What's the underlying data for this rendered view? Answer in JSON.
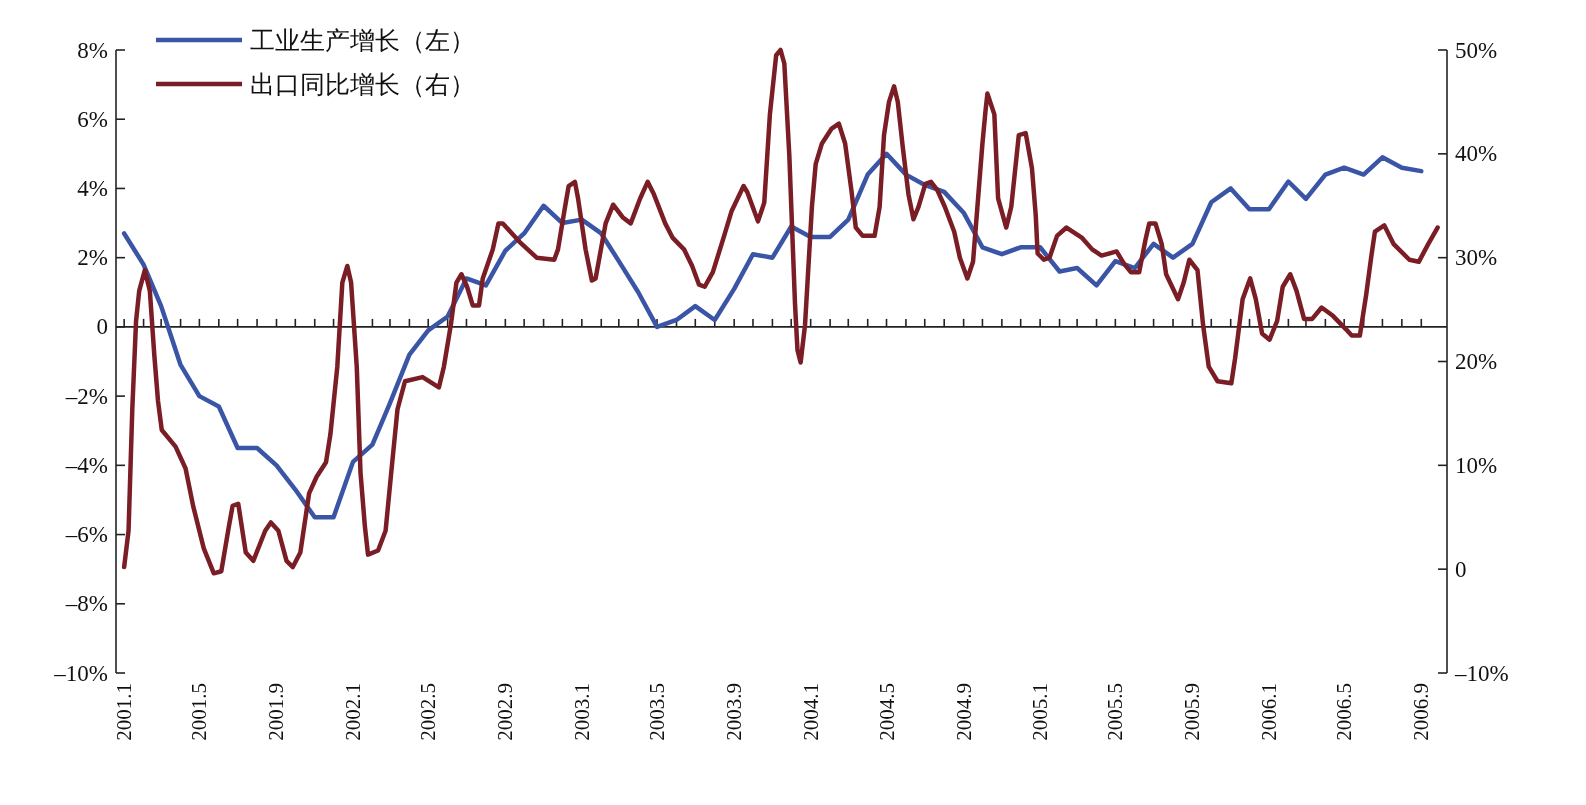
{
  "chart_data": {
    "type": "line",
    "legend": "top left",
    "xlim": [
      "2000-12-19",
      "2006-10-12"
    ],
    "xticks": [
      {
        "value": "2001-01",
        "label": "2001.1"
      },
      {
        "value": "2001-02",
        "label": null
      },
      {
        "value": "2001-03",
        "label": null
      },
      {
        "value": "2001-04",
        "label": null
      },
      {
        "value": "2001-05",
        "label": "2001.5"
      },
      {
        "value": "2001-06",
        "label": null
      },
      {
        "value": "2001-07",
        "label": null
      },
      {
        "value": "2001-08",
        "label": null
      },
      {
        "value": "2001-09",
        "label": "2001.9"
      },
      {
        "value": "2001-10",
        "label": null
      },
      {
        "value": "2001-11",
        "label": null
      },
      {
        "value": "2001-12",
        "label": null
      },
      {
        "value": "2002-01",
        "label": "2002.1"
      },
      {
        "value": "2002-02",
        "label": null
      },
      {
        "value": "2002-03",
        "label": null
      },
      {
        "value": "2002-04",
        "label": null
      },
      {
        "value": "2002-05",
        "label": "2002.5"
      },
      {
        "value": "2002-06",
        "label": null
      },
      {
        "value": "2002-07",
        "label": null
      },
      {
        "value": "2002-08",
        "label": null
      },
      {
        "value": "2002-09",
        "label": "2002.9"
      },
      {
        "value": "2002-10",
        "label": null
      },
      {
        "value": "2002-11",
        "label": null
      },
      {
        "value": "2002-12",
        "label": null
      },
      {
        "value": "2003-01",
        "label": "2003.1"
      },
      {
        "value": "2003-02",
        "label": null
      },
      {
        "value": "2003-03",
        "label": null
      },
      {
        "value": "2003-04",
        "label": null
      },
      {
        "value": "2003-05",
        "label": "2003.5"
      },
      {
        "value": "2003-06",
        "label": null
      },
      {
        "value": "2003-07",
        "label": null
      },
      {
        "value": "2003-08",
        "label": null
      },
      {
        "value": "2003-09",
        "label": "2003.9"
      },
      {
        "value": "2003-10",
        "label": null
      },
      {
        "value": "2003-11",
        "label": null
      },
      {
        "value": "2003-12",
        "label": null
      },
      {
        "value": "2004-01",
        "label": "2004.1"
      },
      {
        "value": "2004-02",
        "label": null
      },
      {
        "value": "2004-03",
        "label": null
      },
      {
        "value": "2004-04",
        "label": null
      },
      {
        "value": "2004-05",
        "label": "2004.5"
      },
      {
        "value": "2004-06",
        "label": null
      },
      {
        "value": "2004-07",
        "label": null
      },
      {
        "value": "2004-08",
        "label": null
      },
      {
        "value": "2004-09",
        "label": "2004.9"
      },
      {
        "value": "2004-10",
        "label": null
      },
      {
        "value": "2004-11",
        "label": null
      },
      {
        "value": "2004-12",
        "label": null
      },
      {
        "value": "2005-01",
        "label": "2005.1"
      },
      {
        "value": "2005-02",
        "label": null
      },
      {
        "value": "2005-03",
        "label": null
      },
      {
        "value": "2005-04",
        "label": null
      },
      {
        "value": "2005-05",
        "label": "2005.5"
      },
      {
        "value": "2005-06",
        "label": null
      },
      {
        "value": "2005-07",
        "label": null
      },
      {
        "value": "2005-08",
        "label": null
      },
      {
        "value": "2005-09",
        "label": "2005.9"
      },
      {
        "value": "2005-10",
        "label": null
      },
      {
        "value": "2005-11",
        "label": null
      },
      {
        "value": "2005-12",
        "label": null
      },
      {
        "value": "2006-01",
        "label": "2006.1"
      },
      {
        "value": "2006-02",
        "label": null
      },
      {
        "value": "2006-03",
        "label": null
      },
      {
        "value": "2006-04",
        "label": null
      },
      {
        "value": "2006-05",
        "label": "2006.5"
      },
      {
        "value": "2006-06",
        "label": null
      },
      {
        "value": "2006-07",
        "label": null
      },
      {
        "value": "2006-08",
        "label": null
      },
      {
        "value": "2006-09",
        "label": "2006.9"
      }
    ],
    "ylim": [
      -10,
      8
    ],
    "yticks": [
      {
        "value": -10,
        "label": "–10%"
      },
      {
        "value": -8,
        "label": "–8%"
      },
      {
        "value": -6,
        "label": "–6%"
      },
      {
        "value": -4,
        "label": "–4%"
      },
      {
        "value": -2,
        "label": "–2%"
      },
      0,
      {
        "value": 2,
        "label": "2%"
      },
      {
        "value": 4,
        "label": "4%"
      },
      {
        "value": 6,
        "label": "6%"
      },
      {
        "value": 8,
        "label": "8%"
      }
    ],
    "y2lim": [
      -10,
      50
    ],
    "y2ticks": [
      {
        "value": -10,
        "label": "–10%"
      },
      0,
      {
        "value": 10,
        "label": "10%"
      },
      {
        "value": 20,
        "label": "20%"
      },
      {
        "value": 30,
        "label": "30%"
      },
      {
        "value": 40,
        "label": "40%"
      },
      {
        "value": 50,
        "label": "50%"
      }
    ],
    "series": [
      {
        "name": "工业生产增长（左）",
        "color": "#3a55a5",
        "x": [
          "2001-01",
          "2001-02",
          "2001-03",
          "2001-04",
          "2001-05",
          "2001-06",
          "2001-07",
          "2001-08",
          "2001-09",
          "2001-10",
          "2001-11",
          "2001-12",
          "2002-01",
          "2002-02",
          "2002-03",
          "2002-04",
          "2002-05",
          "2002-06",
          "2002-07",
          "2002-08",
          "2002-09",
          "2002-10",
          "2002-11",
          "2002-12",
          "2003-01",
          "2003-02",
          "2003-03",
          "2003-04",
          "2003-05",
          "2003-06",
          "2003-07",
          "2003-08",
          "2003-09",
          "2003-10",
          "2003-11",
          "2003-12",
          "2004-01",
          "2004-02",
          "2004-03",
          "2004-04",
          "2004-05",
          "2004-06",
          "2004-07",
          "2004-08",
          "2004-09",
          "2004-10",
          "2004-11",
          "2004-12",
          "2005-01",
          "2005-02",
          "2005-03",
          "2005-04",
          "2005-05",
          "2005-06",
          "2005-07",
          "2005-08",
          "2005-09",
          "2005-10",
          "2005-11",
          "2005-12",
          "2006-01",
          "2006-02",
          "2006-03",
          "2006-04",
          "2006-05",
          "2006-06",
          "2006-07",
          "2006-08",
          "2006-09"
        ],
        "values": [
          2.7,
          1.8,
          0.6,
          -1.1,
          -2.0,
          -2.3,
          -3.5,
          -3.5,
          -4.0,
          -4.7,
          -5.5,
          -5.5,
          -3.9,
          -3.4,
          -2.2,
          -0.8,
          -0.1,
          0.3,
          1.4,
          1.2,
          2.2,
          2.7,
          3.5,
          3.0,
          3.1,
          2.7,
          1.9,
          1.0,
          0,
          0.2,
          0.6,
          0.2,
          1.1,
          2.1,
          2.0,
          2.9,
          2.6,
          2.6,
          3.1,
          4.4,
          5.0,
          4.4,
          4.1,
          3.9,
          3.3,
          2.3,
          2.1,
          2.3,
          2.3,
          1.6,
          1.7,
          1.2,
          1.9,
          1.7,
          2.4,
          2.0,
          2.4,
          3.6,
          4.0,
          3.4,
          3.4,
          4.2,
          3.7,
          4.4,
          4.6,
          4.4,
          4.9,
          4.6,
          4.5
        ]
      },
      {
        "name": "出口同比增长（右）",
        "color": "#7a1d25",
        "axis": "y2",
        "x": [
          "2001-01-01",
          "2001-01-08",
          "2001-01-14",
          "2001-01-20",
          "2001-01-25",
          "2001-02-03",
          "2001-02-11",
          "2001-02-18",
          "2001-02-24",
          "2001-03-02",
          "2001-03-24",
          "2001-04-09",
          "2001-04-21",
          "2001-05-08",
          "2001-05-24",
          "2001-06-05",
          "2001-06-17",
          "2001-06-23",
          "2001-07-02",
          "2001-07-14",
          "2001-07-26",
          "2001-08-14",
          "2001-08-23",
          "2001-09-04",
          "2001-09-17",
          "2001-09-27",
          "2001-10-09",
          "2001-10-23",
          "2001-11-04",
          "2001-11-19",
          "2001-11-26",
          "2001-12-07",
          "2001-12-15",
          "2001-12-23",
          "2001-12-29",
          "2002-01-07",
          "2002-01-13",
          "2002-01-20",
          "2002-01-25",
          "2002-02-10",
          "2002-02-22",
          "2002-03-03",
          "2002-03-13",
          "2002-03-25",
          "2002-04-22",
          "2002-05-18",
          "2002-05-26",
          "2002-06-06",
          "2002-06-15",
          "2002-06-23",
          "2002-07-02",
          "2002-07-11",
          "2002-07-21",
          "2002-07-27",
          "2002-08-12",
          "2002-08-21",
          "2002-08-28",
          "2002-09-24",
          "2002-10-21",
          "2002-11-18",
          "2002-11-24",
          "2002-12-05",
          "2002-12-11",
          "2002-12-21",
          "2002-12-26",
          "2003-01-07",
          "2003-01-17",
          "2003-01-23",
          "2003-02-08",
          "2003-02-20",
          "2003-03-07",
          "2003-03-20",
          "2003-04-04",
          "2003-04-16",
          "2003-04-26",
          "2003-05-14",
          "2003-05-26",
          "2003-06-13",
          "2003-06-26",
          "2003-07-07",
          "2003-07-16",
          "2003-07-29",
          "2003-08-16",
          "2003-08-28",
          "2003-09-16",
          "2003-09-22",
          "2003-10-09",
          "2003-10-19",
          "2003-10-28",
          "2003-11-07",
          "2003-11-14",
          "2003-11-20",
          "2003-11-28",
          "2003-12-07",
          "2003-12-11",
          "2003-12-16",
          "2003-12-23",
          "2004-01-03",
          "2004-01-09",
          "2004-01-19",
          "2004-02-03",
          "2004-02-15",
          "2004-02-25",
          "2004-03-06",
          "2004-03-13",
          "2004-03-24",
          "2004-04-12",
          "2004-04-20",
          "2004-04-27",
          "2004-05-05",
          "2004-05-13",
          "2004-05-19",
          "2004-05-27",
          "2004-06-05",
          "2004-06-13",
          "2004-06-21",
          "2004-07-02",
          "2004-07-11",
          "2004-07-21",
          "2004-08-02",
          "2004-08-17",
          "2004-08-26",
          "2004-09-07",
          "2004-09-16",
          "2004-09-23",
          "2004-10-01",
          "2004-10-06",
          "2004-10-09",
          "2004-10-20",
          "2004-10-26",
          "2004-11-08",
          "2004-11-16",
          "2004-11-28",
          "2004-12-09",
          "2004-12-19",
          "2004-12-25",
          "2004-12-28",
          "2005-01-07",
          "2005-01-16",
          "2005-01-28",
          "2005-02-12",
          "2005-03-09",
          "2005-03-25",
          "2005-04-09",
          "2005-05-03",
          "2005-05-15",
          "2005-05-26",
          "2005-06-08",
          "2005-06-18",
          "2005-06-24",
          "2005-07-04",
          "2005-07-14",
          "2005-07-21",
          "2005-08-09",
          "2005-08-18",
          "2005-08-27",
          "2005-09-09",
          "2005-09-18",
          "2005-09-27",
          "2005-10-11",
          "2005-11-02",
          "2005-11-08",
          "2005-11-20",
          "2005-12-02",
          "2005-12-11",
          "2005-12-21",
          "2006-01-02",
          "2006-01-14",
          "2006-01-23",
          "2006-02-04",
          "2006-02-14",
          "2006-02-26",
          "2006-03-11",
          "2006-03-26",
          "2006-04-13",
          "2006-05-04",
          "2006-05-13",
          "2006-05-26",
          "2006-06-05",
          "2006-06-13",
          "2006-06-19",
          "2006-07-04",
          "2006-07-19",
          "2006-08-13",
          "2006-08-28",
          "2006-09-12",
          "2006-09-27"
        ],
        "values": [
          0.2,
          3.7,
          15.4,
          23.9,
          26.8,
          28.8,
          26.8,
          20.7,
          16.2,
          13.4,
          11.8,
          9.7,
          6.1,
          2.0,
          -0.4,
          -0.2,
          4.1,
          6.1,
          6.3,
          1.6,
          0.8,
          3.7,
          4.5,
          3.7,
          0.8,
          0.2,
          1.6,
          7.3,
          8.9,
          10.3,
          13.0,
          19.5,
          27.6,
          29.2,
          27.6,
          19.5,
          9.3,
          4.1,
          1.4,
          1.8,
          3.7,
          9.3,
          15.4,
          18.1,
          18.5,
          17.5,
          19.5,
          23.5,
          27.6,
          28.4,
          27.2,
          25.4,
          25.4,
          28.0,
          30.8,
          33.3,
          33.3,
          31.5,
          30.0,
          29.8,
          30.8,
          34.8,
          36.9,
          37.3,
          35.7,
          30.8,
          27.8,
          28.0,
          33.3,
          35.1,
          33.9,
          33.3,
          35.7,
          37.3,
          36.1,
          33.3,
          31.9,
          30.8,
          29.2,
          27.4,
          27.2,
          28.6,
          32.1,
          34.5,
          36.9,
          36.3,
          33.5,
          35.3,
          43.8,
          49.5,
          50,
          48.7,
          39.8,
          25.6,
          21.1,
          19.9,
          23.5,
          34.9,
          39.0,
          41.0,
          42.4,
          42.9,
          41.0,
          36.5,
          32.9,
          32.1,
          32.1,
          34.9,
          41.8,
          45.0,
          46.5,
          45.0,
          40.6,
          36.1,
          33.7,
          34.9,
          37.1,
          37.3,
          36.5,
          34.9,
          32.5,
          30.0,
          28.0,
          29.6,
          34.9,
          41.0,
          44.2,
          45.8,
          43.8,
          35.7,
          32.9,
          34.9,
          41.8,
          42.0,
          38.6,
          34.1,
          30.4,
          29.8,
          30.0,
          32.1,
          32.9,
          31.9,
          30.8,
          30.2,
          30.6,
          29.4,
          28.6,
          28.6,
          31.7,
          33.3,
          33.3,
          31.3,
          28.4,
          26.0,
          27.6,
          29.8,
          28.8,
          23.5,
          19.5,
          18.1,
          17.9,
          20.3,
          26.0,
          28.0,
          26.0,
          22.7,
          22.1,
          23.9,
          27.2,
          28.4,
          26.8,
          24.1,
          24.1,
          25.2,
          24.4,
          23.1,
          22.5,
          22.5,
          26.4,
          30.0,
          32.5,
          33.1,
          31.3,
          29.8,
          29.6,
          31.3,
          32.9
        ]
      }
    ]
  }
}
